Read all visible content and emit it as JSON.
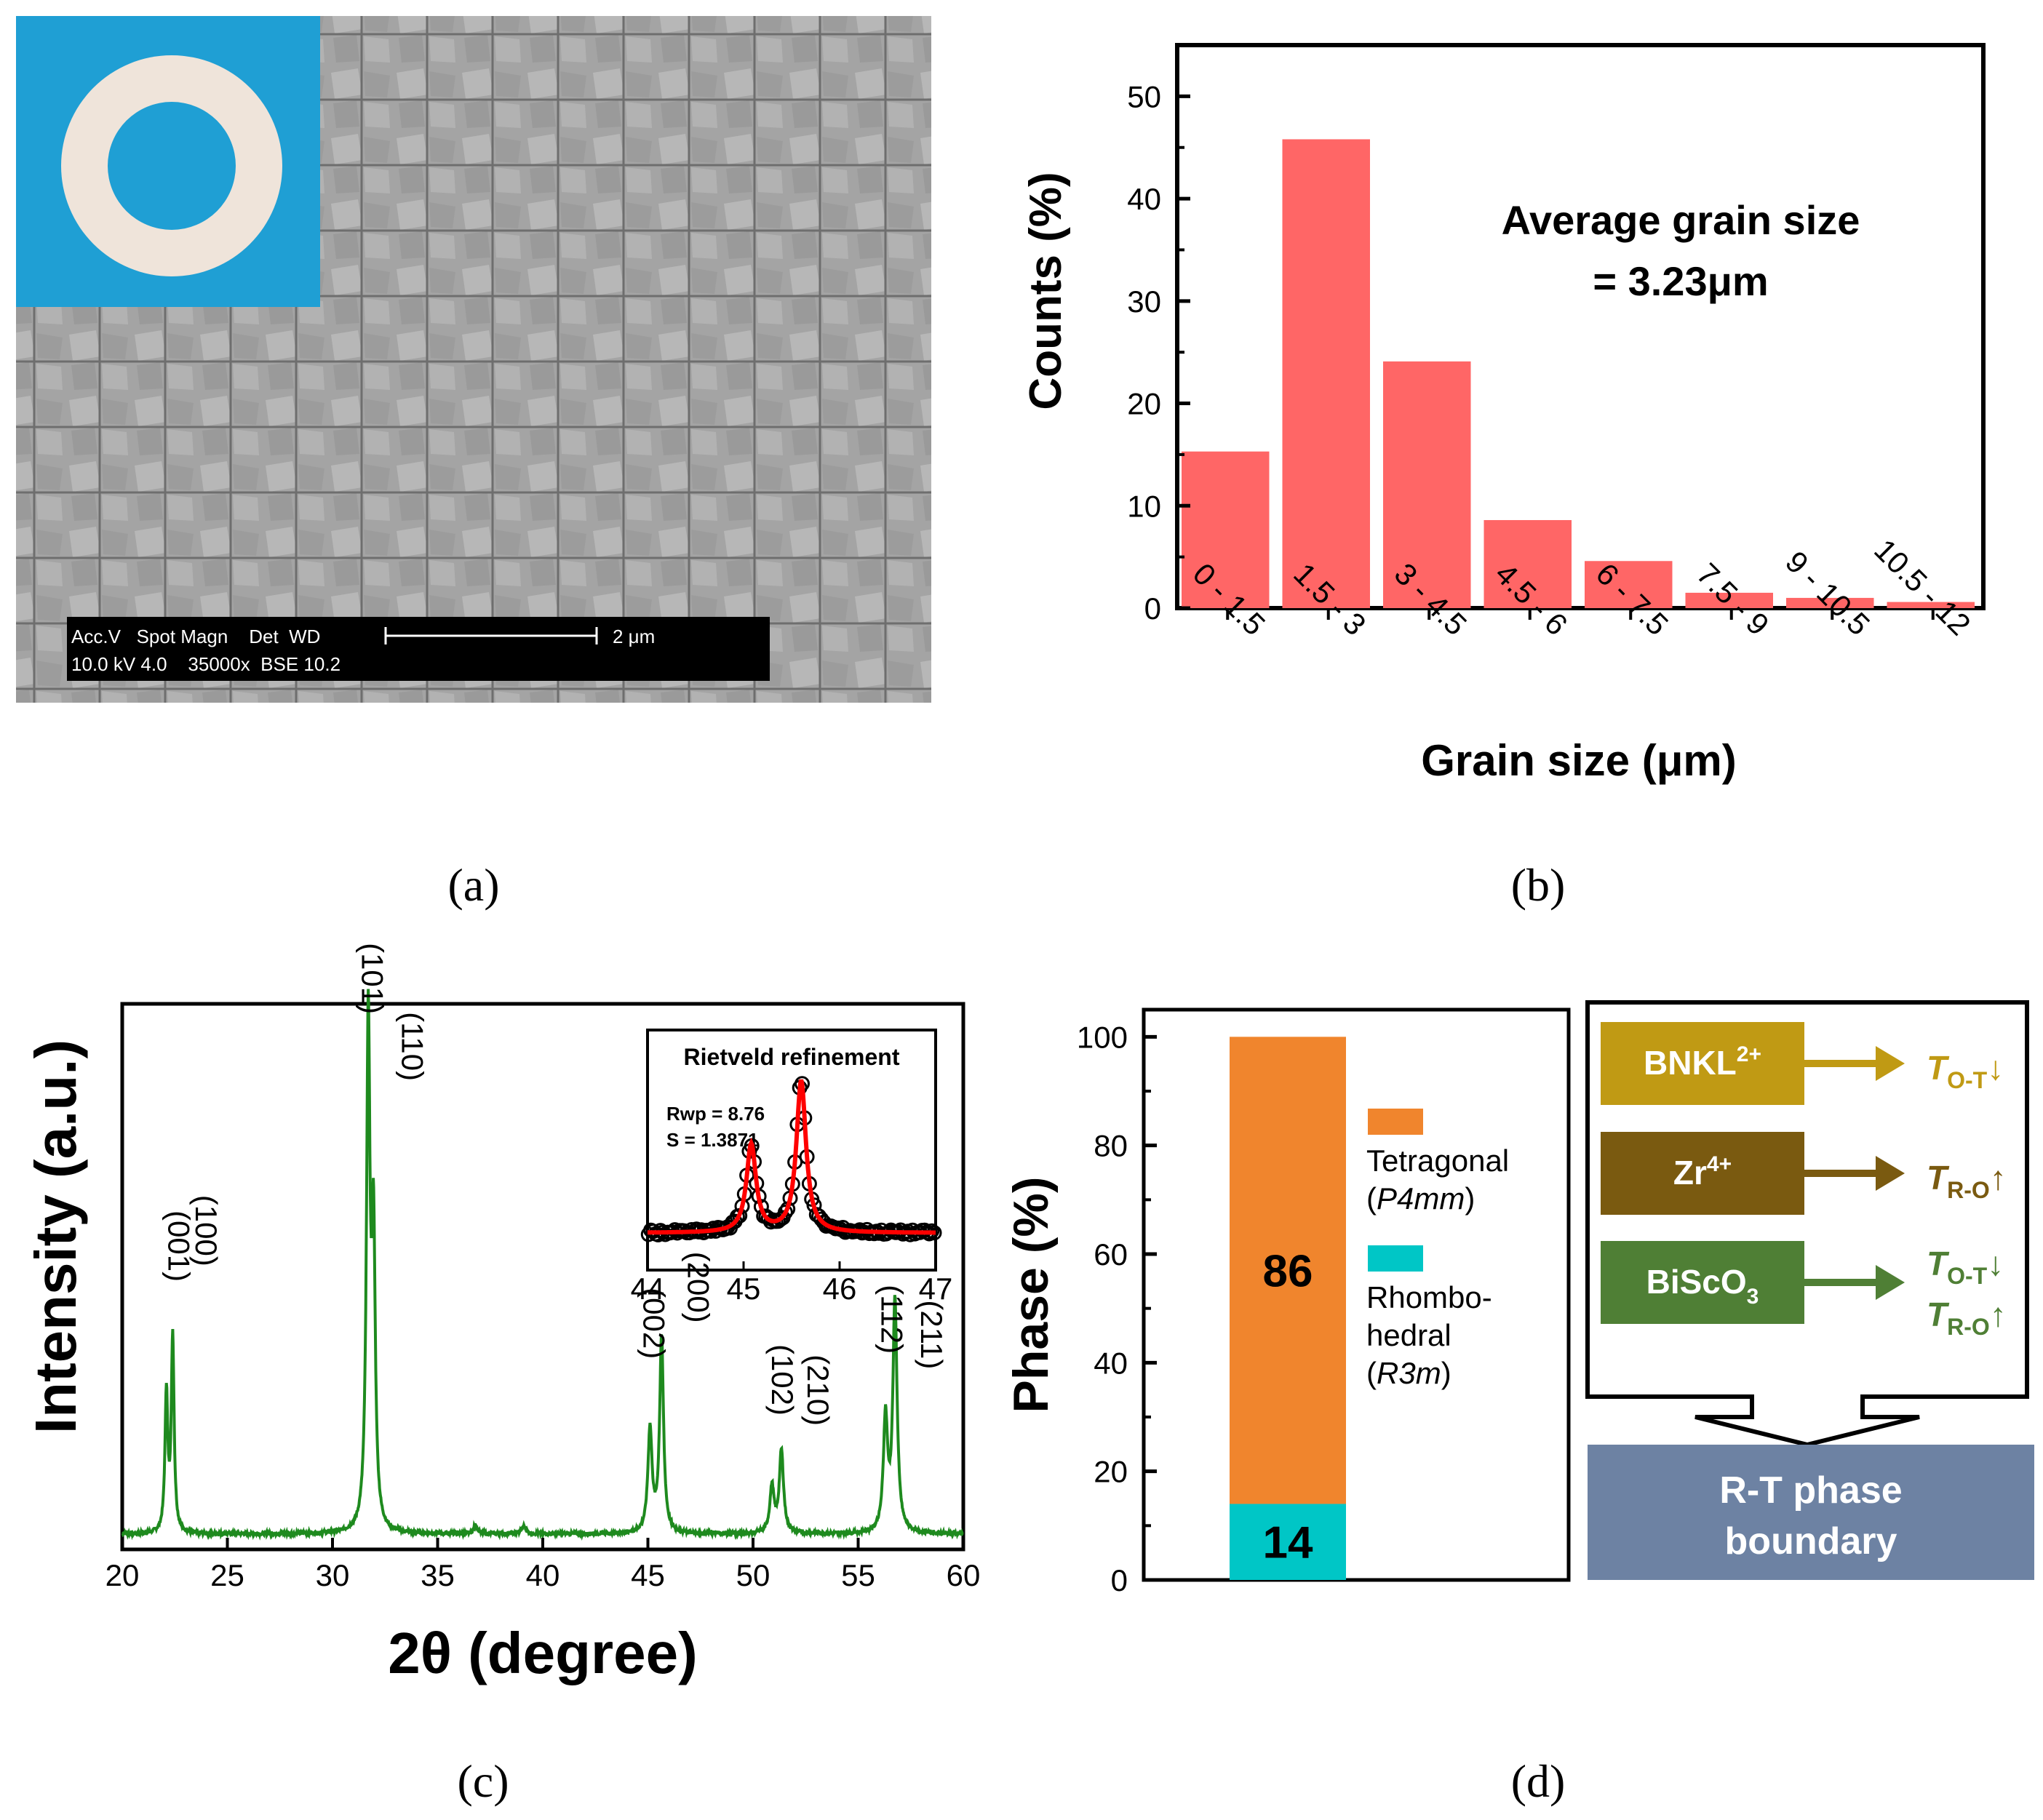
{
  "panel_labels": [
    "(a)",
    "(b)",
    "(c)",
    "(d)"
  ],
  "sem": {
    "info_line1": "Acc.V   Spot Magn    Det  WD",
    "info_line2": "10.0 kV 4.0    35000x  BSE 10.2",
    "scale_label": "2 μm",
    "colors": {
      "inset_bg": "#1f9fd4",
      "ring": "#efe4da",
      "micrograph": "#a9a9a9"
    }
  },
  "chart_data": [
    {
      "id": "b",
      "type": "bar",
      "categories": [
        "0 - 1.5",
        "1.5 - 3",
        "3 - 4.5",
        "4.5 - 6",
        "6 - 7.5",
        "7.5 - 9",
        "9 - 10.5",
        "10.5 - 12"
      ],
      "values": [
        15.3,
        45.8,
        24.1,
        8.6,
        4.6,
        1.5,
        1.0,
        0.6
      ],
      "xlabel": "Grain size (μm)",
      "ylabel": "Counts (%)",
      "ylim": [
        0,
        55
      ],
      "yticks": [
        0,
        10,
        20,
        30,
        40,
        50
      ],
      "annotation": [
        "Average grain size",
        "= 3.23μm"
      ],
      "color": "#ff6666"
    },
    {
      "id": "c",
      "type": "line",
      "xlabel": "2θ (degree)",
      "ylabel": "Intensity (a.u.)",
      "xlim": [
        20,
        60
      ],
      "xticks": [
        20,
        25,
        30,
        35,
        40,
        45,
        50,
        55,
        60
      ],
      "ylim": [
        0,
        1.06
      ],
      "color": "#1e8a1e",
      "baseline": 0.03,
      "peaks": [
        {
          "x": 22.1,
          "h": 0.27,
          "w": 0.08
        },
        {
          "x": 22.4,
          "h": 0.38,
          "w": 0.08
        },
        {
          "x": 31.7,
          "h": 0.98,
          "w": 0.1
        },
        {
          "x": 31.95,
          "h": 0.55,
          "w": 0.1
        },
        {
          "x": 36.8,
          "h": 0.018,
          "w": 0.1
        },
        {
          "x": 39.1,
          "h": 0.015,
          "w": 0.12
        },
        {
          "x": 45.1,
          "h": 0.2,
          "w": 0.12
        },
        {
          "x": 45.65,
          "h": 0.38,
          "w": 0.11
        },
        {
          "x": 50.9,
          "h": 0.09,
          "w": 0.12
        },
        {
          "x": 51.35,
          "h": 0.16,
          "w": 0.12
        },
        {
          "x": 56.3,
          "h": 0.22,
          "w": 0.12
        },
        {
          "x": 56.75,
          "h": 0.45,
          "w": 0.12
        }
      ],
      "peak_labels": [
        {
          "text": "(001)",
          "x": 22.2,
          "y": 0.52
        },
        {
          "text": "(100)",
          "x": 23.5,
          "y": 0.55
        },
        {
          "text": "(101)",
          "x": 31.4,
          "y": 1.04
        },
        {
          "text": "(110)",
          "x": 33.3,
          "y": 0.91
        },
        {
          "text": "(002)",
          "x": 44.8,
          "y": 0.37
        },
        {
          "text": "(200)",
          "x": 46.9,
          "y": 0.44
        },
        {
          "text": "(102)",
          "x": 50.9,
          "y": 0.26
        },
        {
          "text": "(210)",
          "x": 52.6,
          "y": 0.24
        },
        {
          "text": "(112)",
          "x": 56.1,
          "y": 0.38
        },
        {
          "text": "(211)",
          "x": 58.0,
          "y": 0.35
        }
      ],
      "inset": {
        "title": "Rietveld refinement",
        "xlim": [
          44,
          47
        ],
        "xticks": [
          44,
          45,
          46,
          47
        ],
        "rwp": "Rwp = 8.76",
        "s": "S = 1.3871",
        "obs_color": "#000000",
        "fit_color": "#ff0000"
      }
    },
    {
      "id": "d",
      "type": "bar",
      "stacked": true,
      "ylabel": "Phase (%)",
      "ylim": [
        0,
        105
      ],
      "yticks": [
        0,
        20,
        40,
        60,
        80,
        100
      ],
      "series": [
        {
          "name": "Rhombohedral",
          "value": 14,
          "color": "#00c6c6"
        },
        {
          "name": "Tetragonal",
          "value": 86,
          "color": "#f0852d"
        }
      ],
      "legend": [
        {
          "lines": [
            "Tetragonal",
            "(P4mm)"
          ],
          "color": "#f0852d"
        },
        {
          "lines": [
            "Rhombo-",
            "hedral",
            "(R3m)"
          ],
          "color": "#00c6c6"
        }
      ]
    }
  ],
  "diagram": {
    "rows": [
      {
        "label": "BNKL",
        "sup": "2+",
        "color": "#c09a14",
        "effect": [
          {
            "T": "T",
            "sub": "O-T",
            "arrow": "↓"
          }
        ]
      },
      {
        "label": "Zr",
        "sup": "4+",
        "color": "#7a5a10",
        "effect": [
          {
            "T": "T",
            "sub": "R-O",
            "arrow": "↑"
          }
        ]
      },
      {
        "label": "BiScO",
        "sub": "3",
        "color": "#4f7f35",
        "effect": [
          {
            "T": "T",
            "sub": "O-T",
            "arrow": "↓"
          },
          {
            "T": "T",
            "sub": "R-O",
            "arrow": "↑"
          }
        ]
      }
    ],
    "result_lines": [
      "R-T phase",
      "boundary"
    ],
    "result_color": "#6d82a3"
  }
}
